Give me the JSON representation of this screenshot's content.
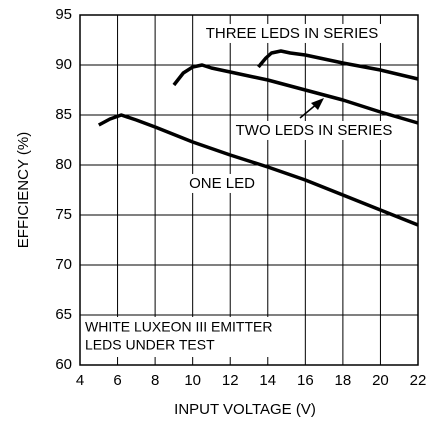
{
  "chart_data": {
    "type": "line",
    "x_label": "INPUT VOLTAGE (V)",
    "y_label": "EFFICIENCY (%)",
    "annotations": [
      "WHITE LUXEON III EMITTER",
      "LEDS UNDER TEST"
    ],
    "xlim": [
      4,
      22
    ],
    "xticks": [
      4,
      6,
      8,
      10,
      12,
      14,
      16,
      18,
      20,
      22
    ],
    "ylim": [
      60,
      95
    ],
    "yticks": [
      60,
      65,
      70,
      75,
      80,
      85,
      90,
      95
    ],
    "grid": true,
    "series": [
      {
        "name": "ONE LED",
        "color": "#000000",
        "x": [
          5,
          5.6,
          6.2,
          7,
          8,
          10,
          12,
          14,
          16,
          18,
          20,
          22
        ],
        "values": [
          84,
          84.6,
          85,
          84.5,
          83.8,
          82.3,
          81,
          79.8,
          78.5,
          77,
          75.5,
          74
        ]
      },
      {
        "name": "TWO LEDS IN SERIES",
        "color": "#000000",
        "x": [
          9,
          9.5,
          10,
          10.5,
          11,
          12,
          14,
          16,
          18,
          20,
          22
        ],
        "values": [
          88,
          89.2,
          89.8,
          90,
          89.7,
          89.3,
          88.5,
          87.5,
          86.5,
          85.3,
          84.2
        ]
      },
      {
        "name": "THREE LEDS IN SERIES",
        "color": "#000000",
        "x": [
          13.5,
          13.9,
          14.2,
          14.7,
          15.2,
          16,
          18,
          20,
          22
        ],
        "values": [
          89.8,
          90.7,
          91.2,
          91.4,
          91.2,
          91,
          90.2,
          89.5,
          88.6
        ]
      }
    ]
  }
}
